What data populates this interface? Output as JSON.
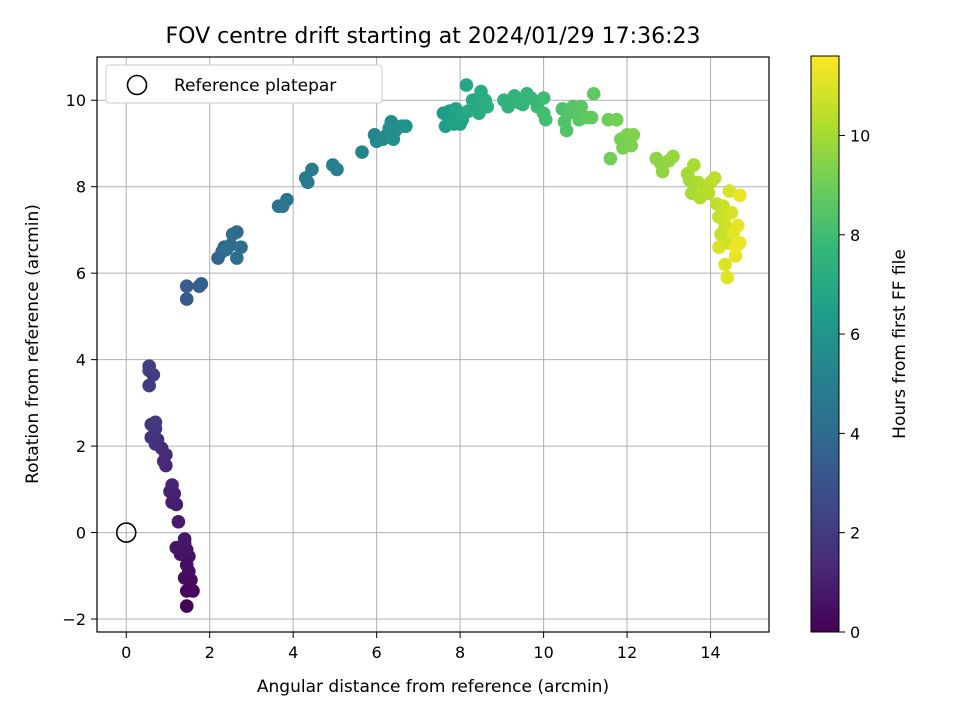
{
  "chart_data": {
    "type": "scatter",
    "title": "FOV centre drift starting at 2024/01/29 17:36:23",
    "xlabel": "Angular distance from reference (arcmin)",
    "ylabel": "Rotation from reference (arcmin)",
    "xlim": [
      -0.7,
      15.4
    ],
    "ylim": [
      -2.3,
      11.0
    ],
    "xticks": [
      "0",
      "2",
      "4",
      "6",
      "8",
      "10",
      "12",
      "14"
    ],
    "yticks": [
      "−2",
      "0",
      "2",
      "4",
      "6",
      "8",
      "10"
    ],
    "grid": true,
    "legend": {
      "placement": "top-left",
      "entries": [
        "Reference platepar"
      ]
    },
    "reference_point": {
      "x": 0,
      "y": 0
    },
    "colorbar": {
      "label": "Hours from first FF file",
      "colormap": "viridis",
      "range": [
        0,
        11.6
      ],
      "ticks": [
        "0",
        "2",
        "4",
        "6",
        "8",
        "10"
      ]
    },
    "colormap_stops": [
      "#440154",
      "#482878",
      "#3e4989",
      "#31688e",
      "#26828e",
      "#1f9e89",
      "#35b779",
      "#6ece58",
      "#b5de2b",
      "#fde725"
    ],
    "points": [
      [
        1.45,
        -1.7,
        0.05
      ],
      [
        1.6,
        -1.35,
        0.15
      ],
      [
        1.45,
        -1.35,
        0.2
      ],
      [
        1.55,
        -1.1,
        0.3
      ],
      [
        1.4,
        -1.05,
        0.35
      ],
      [
        1.5,
        -0.9,
        0.4
      ],
      [
        1.45,
        -0.75,
        0.45
      ],
      [
        1.5,
        -0.55,
        0.5
      ],
      [
        1.3,
        -0.5,
        0.55
      ],
      [
        1.45,
        -0.4,
        0.6
      ],
      [
        1.2,
        -0.35,
        0.65
      ],
      [
        1.4,
        -0.25,
        0.7
      ],
      [
        1.4,
        -0.15,
        0.75
      ],
      [
        1.25,
        0.25,
        0.85
      ],
      [
        1.2,
        0.65,
        0.95
      ],
      [
        1.1,
        0.7,
        1.0
      ],
      [
        1.15,
        0.9,
        1.05
      ],
      [
        1.05,
        0.95,
        1.1
      ],
      [
        1.1,
        1.1,
        1.15
      ],
      [
        0.95,
        1.55,
        1.25
      ],
      [
        0.9,
        1.65,
        1.3
      ],
      [
        0.95,
        1.8,
        1.35
      ],
      [
        0.85,
        1.95,
        1.45
      ],
      [
        0.7,
        2.05,
        1.55
      ],
      [
        0.75,
        2.15,
        1.6
      ],
      [
        0.6,
        2.2,
        1.7
      ],
      [
        0.7,
        2.4,
        1.75
      ],
      [
        0.6,
        2.5,
        1.8
      ],
      [
        0.7,
        2.55,
        1.85
      ],
      [
        0.55,
        3.4,
        2.0
      ],
      [
        0.65,
        3.65,
        2.1
      ],
      [
        0.55,
        3.75,
        2.15
      ],
      [
        0.55,
        3.85,
        2.2
      ],
      [
        1.45,
        5.4,
        3.3
      ],
      [
        1.45,
        5.7,
        3.4
      ],
      [
        1.75,
        5.7,
        3.5
      ],
      [
        1.8,
        5.75,
        3.55
      ],
      [
        2.2,
        6.35,
        3.75
      ],
      [
        2.3,
        6.5,
        3.85
      ],
      [
        2.35,
        6.6,
        3.9
      ],
      [
        2.5,
        6.65,
        4.0
      ],
      [
        2.55,
        6.9,
        4.05
      ],
      [
        2.65,
        6.95,
        4.1
      ],
      [
        2.75,
        6.6,
        4.15
      ],
      [
        2.65,
        6.35,
        4.2
      ],
      [
        2.4,
        6.55,
        4.25
      ],
      [
        3.65,
        7.55,
        4.4
      ],
      [
        3.75,
        7.55,
        4.5
      ],
      [
        3.85,
        7.7,
        4.55
      ],
      [
        4.3,
        8.2,
        4.7
      ],
      [
        4.35,
        8.1,
        4.75
      ],
      [
        4.45,
        8.4,
        4.8
      ],
      [
        4.95,
        8.5,
        5.0
      ],
      [
        5.05,
        8.4,
        5.05
      ],
      [
        5.65,
        8.8,
        5.25
      ],
      [
        5.95,
        9.2,
        5.35
      ],
      [
        6.0,
        9.05,
        5.45
      ],
      [
        6.15,
        9.1,
        5.5
      ],
      [
        6.25,
        9.2,
        5.55
      ],
      [
        6.3,
        9.35,
        5.6
      ],
      [
        6.35,
        9.5,
        5.65
      ],
      [
        6.4,
        9.1,
        5.7
      ],
      [
        6.45,
        9.3,
        5.75
      ],
      [
        6.6,
        9.4,
        5.85
      ],
      [
        6.7,
        9.4,
        5.95
      ],
      [
        7.6,
        9.7,
        6.35
      ],
      [
        7.65,
        9.4,
        6.45
      ],
      [
        7.75,
        9.75,
        6.5
      ],
      [
        7.8,
        9.55,
        6.55
      ],
      [
        7.85,
        9.45,
        6.6
      ],
      [
        7.9,
        9.8,
        6.65
      ],
      [
        8.0,
        9.45,
        6.7
      ],
      [
        8.05,
        9.55,
        6.75
      ],
      [
        8.1,
        9.7,
        6.8
      ],
      [
        8.15,
        10.35,
        6.85
      ],
      [
        8.2,
        9.75,
        6.9
      ],
      [
        8.3,
        10.0,
        6.95
      ],
      [
        8.4,
        9.85,
        7.0
      ],
      [
        8.45,
        9.7,
        7.05
      ],
      [
        8.5,
        10.2,
        7.1
      ],
      [
        8.55,
        9.95,
        7.15
      ],
      [
        8.6,
        10.0,
        7.2
      ],
      [
        8.65,
        9.85,
        7.25
      ],
      [
        9.05,
        10.0,
        7.45
      ],
      [
        9.15,
        9.85,
        7.5
      ],
      [
        9.3,
        10.1,
        7.55
      ],
      [
        9.4,
        9.95,
        7.6
      ],
      [
        9.5,
        9.9,
        7.65
      ],
      [
        9.6,
        10.15,
        7.7
      ],
      [
        9.7,
        10.05,
        7.75
      ],
      [
        9.85,
        9.85,
        7.85
      ],
      [
        10.0,
        10.05,
        7.95
      ],
      [
        10.0,
        9.7,
        8.0
      ],
      [
        10.05,
        9.55,
        8.05
      ],
      [
        10.45,
        9.8,
        8.25
      ],
      [
        10.5,
        9.5,
        8.3
      ],
      [
        10.55,
        9.3,
        8.35
      ],
      [
        10.6,
        9.7,
        8.4
      ],
      [
        10.7,
        9.85,
        8.45
      ],
      [
        10.8,
        9.7,
        8.5
      ],
      [
        10.85,
        9.55,
        8.55
      ],
      [
        10.9,
        9.85,
        8.6
      ],
      [
        11.05,
        9.6,
        8.65
      ],
      [
        11.2,
        10.15,
        8.7
      ],
      [
        11.15,
        9.6,
        8.75
      ],
      [
        11.55,
        9.55,
        8.95
      ],
      [
        11.6,
        8.65,
        9.05
      ],
      [
        11.75,
        9.55,
        9.1
      ],
      [
        11.85,
        9.1,
        9.15
      ],
      [
        11.9,
        8.9,
        9.2
      ],
      [
        12.0,
        9.2,
        9.25
      ],
      [
        12.1,
        8.95,
        9.3
      ],
      [
        12.15,
        9.2,
        9.35
      ],
      [
        12.7,
        8.65,
        9.55
      ],
      [
        12.8,
        8.55,
        9.6
      ],
      [
        12.85,
        8.35,
        9.65
      ],
      [
        13.0,
        8.6,
        9.7
      ],
      [
        13.1,
        8.7,
        9.75
      ],
      [
        13.45,
        8.3,
        9.95
      ],
      [
        13.5,
        8.15,
        10.0
      ],
      [
        13.55,
        7.85,
        10.05
      ],
      [
        13.6,
        8.5,
        10.1
      ],
      [
        13.7,
        8.1,
        10.15
      ],
      [
        13.75,
        7.75,
        10.2
      ],
      [
        13.85,
        8.0,
        10.25
      ],
      [
        13.95,
        7.85,
        10.3
      ],
      [
        14.0,
        8.1,
        10.35
      ],
      [
        14.1,
        8.2,
        10.4
      ],
      [
        14.15,
        7.6,
        10.5
      ],
      [
        14.2,
        7.3,
        10.55
      ],
      [
        14.25,
        6.9,
        10.6
      ],
      [
        14.3,
        7.55,
        10.65
      ],
      [
        14.35,
        7.1,
        10.7
      ],
      [
        14.4,
        7.35,
        10.75
      ],
      [
        14.4,
        6.7,
        10.8
      ],
      [
        14.45,
        7.9,
        10.85
      ],
      [
        14.5,
        7.4,
        10.9
      ],
      [
        14.2,
        6.6,
        10.95
      ],
      [
        14.35,
        6.2,
        11.0
      ],
      [
        14.4,
        5.9,
        11.05
      ],
      [
        14.55,
        6.95,
        11.1
      ],
      [
        14.6,
        6.4,
        11.15
      ],
      [
        14.65,
        7.1,
        11.2
      ],
      [
        14.7,
        6.7,
        11.25
      ],
      [
        14.7,
        7.8,
        11.3
      ],
      [
        14.6,
        6.6,
        11.35
      ]
    ]
  }
}
